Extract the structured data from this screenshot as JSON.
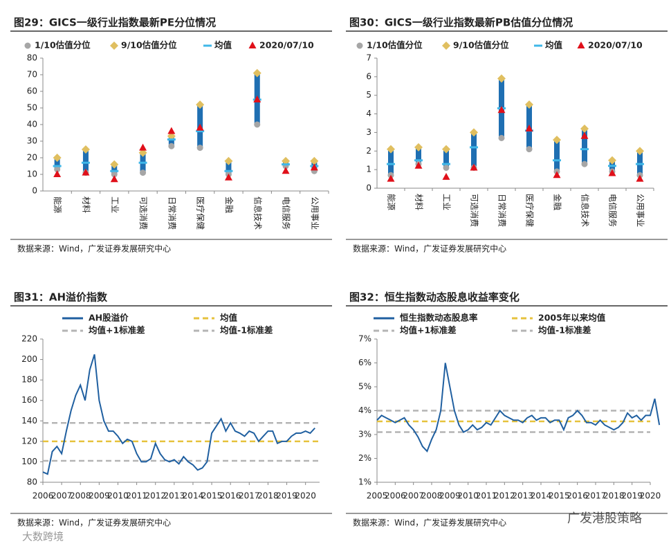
{
  "chart_data": [
    {
      "type": "range",
      "title": "图29：GICS一级行业指数最新PE分位情况",
      "source": "数据来源：Wind，广发证券发展研究中心",
      "categories": [
        "能源",
        "材料",
        "工业",
        "可选消费",
        "日常消费",
        "医疗保健",
        "金融",
        "信息技术",
        "电信服务",
        "公用事业"
      ],
      "bar_color": "#1f6fb2",
      "ylim": [
        0,
        80
      ],
      "yticks": [
        0,
        10,
        20,
        30,
        40,
        50,
        60,
        70,
        80
      ],
      "series": [
        {
          "name": "1/10估值分位",
          "color": "#a6a6a6",
          "marker": "circle",
          "values": [
            13,
            11,
            10,
            11,
            27,
            26,
            10,
            40,
            15,
            12
          ]
        },
        {
          "name": "9/10估值分位",
          "color": "#e0bf60",
          "marker": "diamond",
          "values": [
            20,
            25,
            16,
            23,
            33,
            52,
            18,
            71,
            18,
            18
          ]
        },
        {
          "name": "均值",
          "color": "#3fb7e8",
          "marker": "dash",
          "values": [
            15,
            17,
            12,
            17,
            31,
            36,
            12,
            55,
            16,
            15
          ]
        },
        {
          "name": "2020/07/10",
          "color": "#e0101a",
          "marker": "triangle",
          "values": [
            10,
            11,
            7,
            26,
            36,
            38,
            8,
            55,
            12,
            14
          ]
        }
      ]
    },
    {
      "type": "range",
      "title": "图30：GICS一级行业指数最新PB估值分位情况",
      "source": "数据来源：Wind，广发证券发展研究中心",
      "categories": [
        "能源",
        "材料",
        "工业",
        "可选消费",
        "日常消费",
        "医疗保健",
        "金融",
        "信息技术",
        "电信服务",
        "公用事业"
      ],
      "bar_color": "#1f6fb2",
      "ylim": [
        0,
        7
      ],
      "yticks": [
        0,
        1,
        2,
        3,
        4,
        5,
        6,
        7
      ],
      "series": [
        {
          "name": "1/10估值分位",
          "color": "#a6a6a6",
          "marker": "circle",
          "values": [
            0.7,
            1.3,
            1.1,
            1.1,
            2.7,
            2.1,
            0.9,
            1.3,
            0.9,
            0.7
          ]
        },
        {
          "name": "9/10估值分位",
          "color": "#e0bf60",
          "marker": "diamond",
          "values": [
            2.1,
            2.2,
            2.1,
            3.0,
            5.9,
            4.5,
            2.6,
            3.2,
            1.5,
            2.0
          ]
        },
        {
          "name": "均值",
          "color": "#3fb7e8",
          "marker": "dash",
          "values": [
            1.3,
            1.5,
            1.3,
            2.2,
            4.3,
            3.1,
            1.5,
            2.1,
            1.2,
            1.3
          ]
        },
        {
          "name": "2020/07/10",
          "color": "#e0101a",
          "marker": "triangle",
          "values": [
            0.5,
            1.2,
            0.6,
            1.1,
            4.2,
            3.2,
            0.7,
            2.8,
            0.8,
            0.5
          ]
        }
      ]
    },
    {
      "type": "line",
      "title": "图31：AH溢价指数",
      "source": "数据来源：Wind，广发证券发展研究中心",
      "xlim": [
        2006,
        2020.75
      ],
      "xticks": [
        2006,
        2007,
        2008,
        2009,
        2010,
        2011,
        2012,
        2013,
        2014,
        2015,
        2016,
        2017,
        2018,
        2019,
        2020
      ],
      "ylim": [
        80,
        220
      ],
      "yticks": [
        80,
        100,
        120,
        140,
        160,
        180,
        200,
        220
      ],
      "x": [
        2006,
        2006.25,
        2006.5,
        2006.75,
        2007,
        2007.25,
        2007.5,
        2007.75,
        2008,
        2008.25,
        2008.5,
        2008.75,
        2009,
        2009.25,
        2009.5,
        2009.75,
        2010,
        2010.25,
        2010.5,
        2010.75,
        2011,
        2011.25,
        2011.5,
        2011.75,
        2012,
        2012.25,
        2012.5,
        2012.75,
        2013,
        2013.25,
        2013.5,
        2013.75,
        2014,
        2014.25,
        2014.5,
        2014.75,
        2015,
        2015.25,
        2015.5,
        2015.75,
        2016,
        2016.25,
        2016.5,
        2016.75,
        2017,
        2017.25,
        2017.5,
        2017.75,
        2018,
        2018.25,
        2018.5,
        2018.75,
        2019,
        2019.25,
        2019.5,
        2019.75,
        2020,
        2020.25,
        2020.5
      ],
      "series": [
        {
          "name": "AH股溢价",
          "color": "#1f5fa0",
          "values": [
            90,
            88,
            110,
            115,
            108,
            130,
            150,
            165,
            175,
            160,
            190,
            205,
            160,
            140,
            130,
            130,
            125,
            118,
            122,
            120,
            108,
            100,
            100,
            103,
            118,
            108,
            102,
            100,
            102,
            98,
            105,
            100,
            97,
            92,
            94,
            100,
            128,
            135,
            142,
            130,
            138,
            130,
            128,
            125,
            130,
            128,
            120,
            125,
            130,
            130,
            118,
            120,
            120,
            125,
            128,
            128,
            130,
            128,
            133
          ]
        }
      ],
      "reference_lines": [
        {
          "name": "均值",
          "color": "#e6c23c",
          "value": 120
        },
        {
          "name": "均值+1标准差",
          "color": "#b4b4b4",
          "value": 138
        },
        {
          "name": "均值-1标准差",
          "color": "#b4b4b4",
          "value": 101
        }
      ]
    },
    {
      "type": "line",
      "title": "图32：恒生指数动态股息收益率变化",
      "source": "数据来源：Wind，广发证券发展研究中心",
      "xlim": [
        2005,
        2020
      ],
      "xticks": [
        2005,
        2006,
        2007,
        2008,
        2009,
        2010,
        2011,
        2012,
        2013,
        2014,
        2015,
        2016,
        2017,
        2018,
        2019,
        2020
      ],
      "ylim": [
        1,
        7
      ],
      "yticks": [
        {
          "value": 1,
          "label": "1%"
        },
        {
          "value": 2,
          "label": "2%"
        },
        {
          "value": 3,
          "label": "3%"
        },
        {
          "value": 4,
          "label": "4%"
        },
        {
          "value": 5,
          "label": "5%"
        },
        {
          "value": 6,
          "label": "6%"
        },
        {
          "value": 7,
          "label": "7%"
        }
      ],
      "x": [
        2005,
        2005.25,
        2005.5,
        2005.75,
        2006,
        2006.25,
        2006.5,
        2006.75,
        2007,
        2007.25,
        2007.5,
        2007.75,
        2008,
        2008.25,
        2008.5,
        2008.75,
        2009,
        2009.25,
        2009.5,
        2009.75,
        2010,
        2010.25,
        2010.5,
        2010.75,
        2011,
        2011.25,
        2011.5,
        2011.75,
        2012,
        2012.25,
        2012.5,
        2012.75,
        2013,
        2013.25,
        2013.5,
        2013.75,
        2014,
        2014.25,
        2014.5,
        2014.75,
        2015,
        2015.25,
        2015.5,
        2015.75,
        2016,
        2016.25,
        2016.5,
        2016.75,
        2017,
        2017.25,
        2017.5,
        2017.75,
        2018,
        2018.25,
        2018.5,
        2018.75,
        2019,
        2019.25,
        2019.5,
        2019.75,
        2020,
        2020.25,
        2020.5
      ],
      "series": [
        {
          "name": "恒生指数动态股息率",
          "color": "#1f5fa0",
          "values": [
            3.6,
            3.8,
            3.7,
            3.6,
            3.5,
            3.6,
            3.7,
            3.4,
            3.2,
            2.9,
            2.5,
            2.3,
            2.8,
            3.2,
            4.0,
            6.0,
            5.0,
            4.0,
            3.4,
            3.1,
            3.2,
            3.4,
            3.2,
            3.3,
            3.5,
            3.4,
            3.7,
            4.0,
            3.8,
            3.7,
            3.6,
            3.6,
            3.5,
            3.7,
            3.8,
            3.6,
            3.7,
            3.7,
            3.5,
            3.6,
            3.6,
            3.2,
            3.7,
            3.8,
            4.0,
            3.8,
            3.5,
            3.5,
            3.4,
            3.6,
            3.4,
            3.3,
            3.2,
            3.3,
            3.5,
            3.9,
            3.7,
            3.8,
            3.6,
            3.8,
            3.8,
            4.5,
            3.4
          ]
        }
      ],
      "reference_lines": [
        {
          "name": "2005年以来均值",
          "color": "#e6c23c",
          "value": 3.55
        },
        {
          "name": "均值+1标准差",
          "color": "#b4b4b4",
          "value": 4.0
        },
        {
          "name": "均值-1标准差",
          "color": "#b4b4b4",
          "value": 3.1
        }
      ]
    }
  ],
  "watermarks": [
    "广发港股策略",
    "大数跨境"
  ]
}
